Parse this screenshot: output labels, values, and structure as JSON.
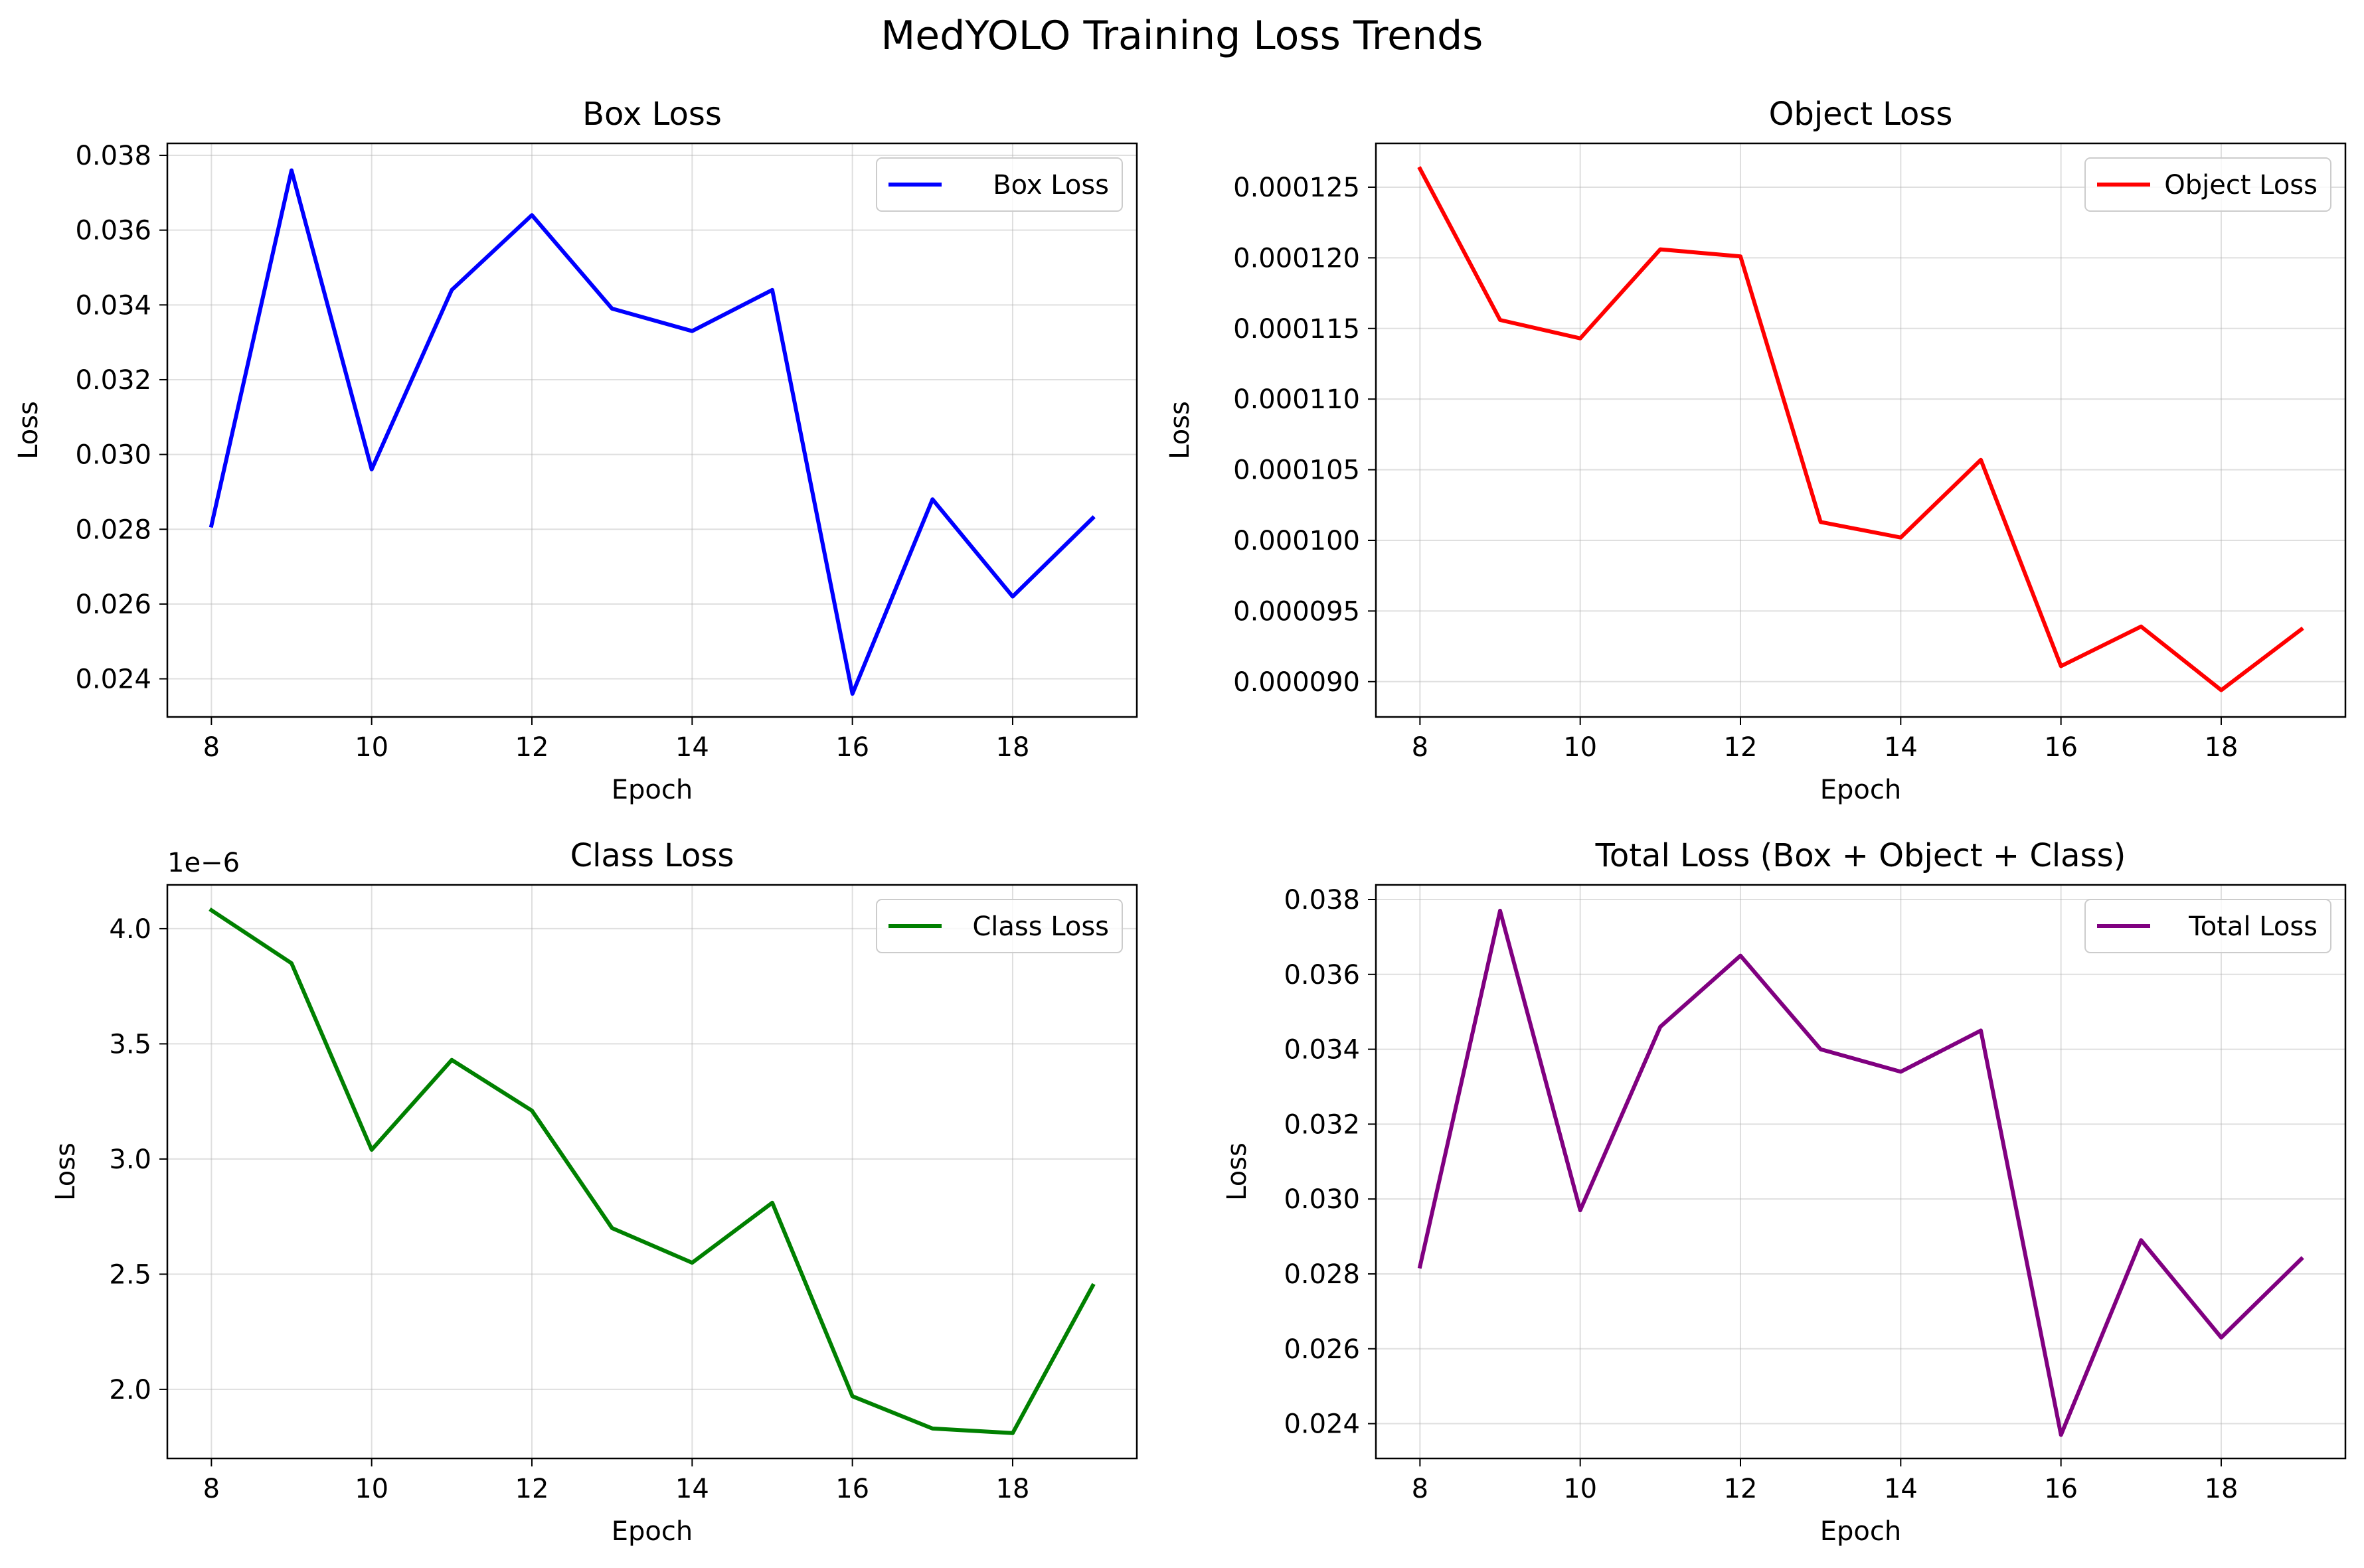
{
  "figure": {
    "title": "MedYOLO Training Loss Trends"
  },
  "chart_data": [
    {
      "type": "line",
      "title": "Box Loss",
      "xlabel": "Epoch",
      "ylabel": "Loss",
      "x": [
        8,
        9,
        10,
        11,
        12,
        13,
        14,
        15,
        16,
        17,
        18,
        19
      ],
      "xlim": [
        7.45,
        19.55
      ],
      "ylim": [
        0.02298,
        0.03832
      ],
      "xticks": [
        8,
        10,
        12,
        14,
        16,
        18
      ],
      "yticks": [
        0.024,
        0.026,
        0.028,
        0.03,
        0.032,
        0.034,
        0.036,
        0.038
      ],
      "ytick_labels": [
        "0.024",
        "0.026",
        "0.028",
        "0.030",
        "0.032",
        "0.034",
        "0.036",
        "0.038"
      ],
      "offset_label": "",
      "grid": true,
      "legend_position": "upper right",
      "series": [
        {
          "name": "Box Loss",
          "color": "#0000ff",
          "values": [
            0.0281,
            0.0376,
            0.0296,
            0.0344,
            0.0364,
            0.0339,
            0.0333,
            0.0344,
            0.0236,
            0.0288,
            0.0262,
            0.0283
          ]
        }
      ]
    },
    {
      "type": "line",
      "title": "Object Loss",
      "xlabel": "Epoch",
      "ylabel": "Loss",
      "x": [
        8,
        9,
        10,
        11,
        12,
        13,
        14,
        15,
        16,
        17,
        18,
        19
      ],
      "xlim": [
        7.45,
        19.55
      ],
      "ylim": [
        8.75e-05,
        0.0001281
      ],
      "xticks": [
        8,
        10,
        12,
        14,
        16,
        18
      ],
      "yticks": [
        9e-05,
        9.5e-05,
        0.0001,
        0.000105,
        0.00011,
        0.000115,
        0.00012,
        0.000125
      ],
      "ytick_labels": [
        "0.000090",
        "0.000095",
        "0.000100",
        "0.000105",
        "0.000110",
        "0.000115",
        "0.000120",
        "0.000125"
      ],
      "offset_label": "",
      "grid": true,
      "legend_position": "upper right",
      "series": [
        {
          "name": "Object Loss",
          "color": "#ff0000",
          "values": [
            0.0001263,
            0.0001156,
            0.0001143,
            0.0001206,
            0.0001201,
            0.0001013,
            0.0001002,
            0.0001057,
            9.11e-05,
            9.39e-05,
            8.94e-05,
            9.37e-05
          ]
        }
      ]
    },
    {
      "type": "line",
      "title": "Class Loss",
      "xlabel": "Epoch",
      "ylabel": "Loss",
      "x": [
        8,
        9,
        10,
        11,
        12,
        13,
        14,
        15,
        16,
        17,
        18,
        19
      ],
      "xlim": [
        7.45,
        19.55
      ],
      "ylim": [
        1.7e-06,
        4.19e-06
      ],
      "xticks": [
        8,
        10,
        12,
        14,
        16,
        18
      ],
      "yticks": [
        2e-06,
        2.5e-06,
        3e-06,
        3.5e-06,
        4e-06
      ],
      "ytick_labels": [
        "2.0",
        "2.5",
        "3.0",
        "3.5",
        "4.0"
      ],
      "offset_label": "1e−6",
      "grid": true,
      "legend_position": "upper right",
      "series": [
        {
          "name": "Class Loss",
          "color": "#008000",
          "values": [
            4.08e-06,
            3.85e-06,
            3.04e-06,
            3.43e-06,
            3.21e-06,
            2.7e-06,
            2.55e-06,
            2.81e-06,
            1.97e-06,
            1.83e-06,
            1.81e-06,
            2.45e-06
          ]
        }
      ]
    },
    {
      "type": "line",
      "title": "Total Loss (Box + Object + Class)",
      "xlabel": "Epoch",
      "ylabel": "Loss",
      "x": [
        8,
        9,
        10,
        11,
        12,
        13,
        14,
        15,
        16,
        17,
        18,
        19
      ],
      "xlim": [
        7.45,
        19.55
      ],
      "ylim": [
        0.02307,
        0.03839
      ],
      "xticks": [
        8,
        10,
        12,
        14,
        16,
        18
      ],
      "yticks": [
        0.024,
        0.026,
        0.028,
        0.03,
        0.032,
        0.034,
        0.036,
        0.038
      ],
      "ytick_labels": [
        "0.024",
        "0.026",
        "0.028",
        "0.030",
        "0.032",
        "0.034",
        "0.036",
        "0.038"
      ],
      "offset_label": "",
      "grid": true,
      "legend_position": "upper right",
      "series": [
        {
          "name": "Total Loss",
          "color": "#800080",
          "values": [
            0.0282,
            0.0377,
            0.0297,
            0.0346,
            0.0365,
            0.034,
            0.0334,
            0.0345,
            0.0237,
            0.0289,
            0.0263,
            0.0284
          ]
        }
      ]
    }
  ]
}
